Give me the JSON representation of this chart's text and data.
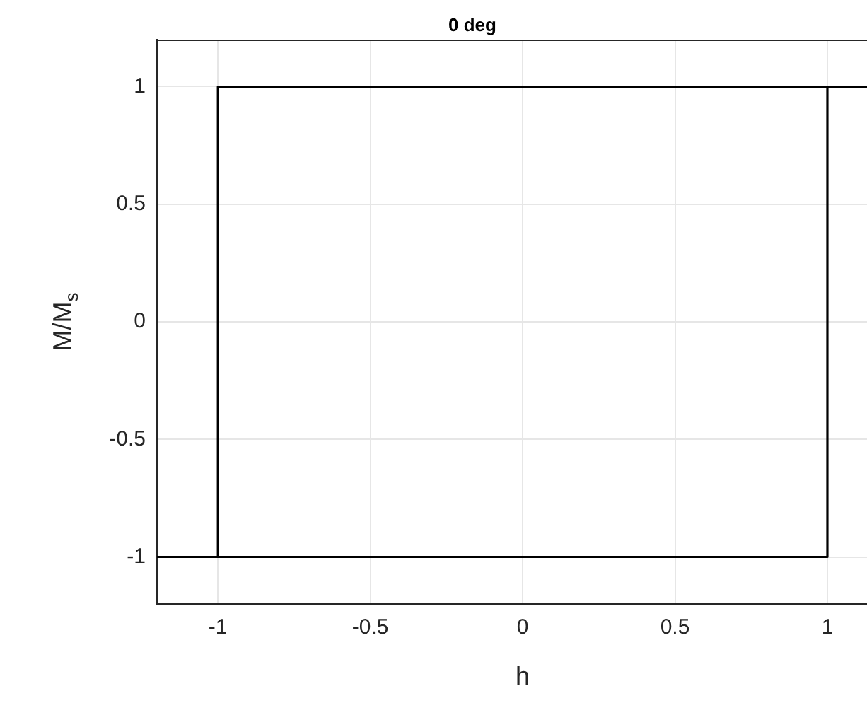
{
  "chart_data": {
    "type": "line",
    "title": "0 deg",
    "xlabel": "h",
    "ylabel": "M/M$_{s}$",
    "series": [
      {
        "color": "#000000",
        "x": [
          1.13,
          -1,
          -1,
          -1.2
        ],
        "values": [
          1,
          1,
          -1,
          -1
        ]
      },
      {
        "color": "#000000",
        "x": [
          -1,
          1,
          1
        ],
        "values": [
          -1,
          -1,
          1
        ]
      }
    ],
    "xlim": [
      -1.2,
      1.13
    ],
    "xticks": [
      -1,
      -0.5,
      0,
      0.5,
      1
    ],
    "ylim": [
      -1.2,
      1.2
    ],
    "yticks": [
      -1,
      -0.5,
      0,
      0.5,
      1
    ],
    "grid": true,
    "legend": false,
    "marker": "none",
    "line_style": "solid"
  }
}
